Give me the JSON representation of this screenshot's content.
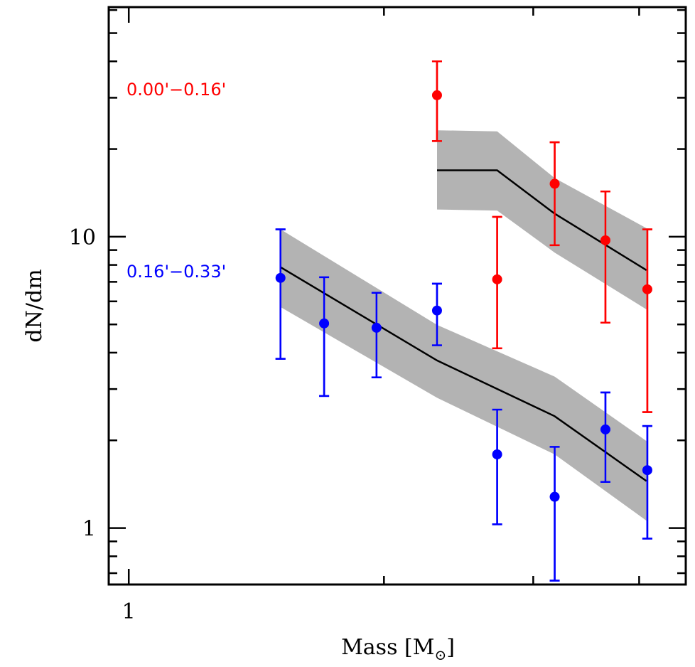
{
  "chart_data": {
    "type": "scatter",
    "title": "",
    "xlabel": "Mass [M",
    "xlabel_subscript": "⊙",
    "xlabel_close": "]",
    "ylabel": "dN/dm",
    "xscale": "log",
    "yscale": "log",
    "xlim": [
      0.947,
      4.54
    ],
    "ylim": [
      0.64,
      61.4
    ],
    "x_tick_labels": [
      {
        "value": 1,
        "label": "1"
      }
    ],
    "x_major_ticks": [
      1
    ],
    "x_minor_ticks": [
      2,
      3,
      4
    ],
    "y_tick_labels": [
      {
        "value": 1,
        "label": "1"
      },
      {
        "value": 10,
        "label": "10"
      }
    ],
    "y_major_ticks": [
      1,
      10
    ],
    "y_minor_ticks": [
      0.7,
      0.8,
      0.9,
      2,
      3,
      4,
      5,
      6,
      7,
      8,
      9,
      20,
      30,
      40,
      50,
      60
    ],
    "grid": false,
    "legend": "annotations, top-left",
    "series": [
      {
        "name": "0.00'−0.16'",
        "color": "#ff0000",
        "label_position": "top-left",
        "points": [
          {
            "x": 2.31,
            "y": 30.6,
            "ylo": 21.3,
            "yhi": 40.0
          },
          {
            "x": 2.72,
            "y": 7.14,
            "ylo": 4.14,
            "yhi": 11.7
          },
          {
            "x": 3.18,
            "y": 15.2,
            "ylo": 9.35,
            "yhi": 21.1
          },
          {
            "x": 3.65,
            "y": 9.72,
            "ylo": 5.07,
            "yhi": 14.3
          },
          {
            "x": 4.09,
            "y": 6.6,
            "ylo": 2.5,
            "yhi": 10.6
          }
        ],
        "model": {
          "line_color": "#000000",
          "band_color": "#b3b3b3",
          "x": [
            2.31,
            2.72,
            3.18,
            4.08
          ],
          "y": [
            16.9,
            16.9,
            12.0,
            7.68
          ],
          "band_low": [
            12.4,
            12.3,
            8.82,
            5.63
          ],
          "band_high": [
            23.2,
            23.0,
            15.9,
            10.7
          ]
        }
      },
      {
        "name": "0.16'−0.33'",
        "color": "#0000ff",
        "label_position": "middle-left",
        "points": [
          {
            "x": 1.51,
            "y": 7.22,
            "ylo": 3.81,
            "yhi": 10.6
          },
          {
            "x": 1.7,
            "y": 5.04,
            "ylo": 2.84,
            "yhi": 7.26
          },
          {
            "x": 1.96,
            "y": 4.87,
            "ylo": 3.29,
            "yhi": 6.42
          },
          {
            "x": 2.31,
            "y": 5.58,
            "ylo": 4.24,
            "yhi": 6.9
          },
          {
            "x": 2.72,
            "y": 1.79,
            "ylo": 1.03,
            "yhi": 2.55
          },
          {
            "x": 3.18,
            "y": 1.28,
            "ylo": 0.66,
            "yhi": 1.9
          },
          {
            "x": 3.65,
            "y": 2.18,
            "ylo": 1.44,
            "yhi": 2.92
          },
          {
            "x": 4.09,
            "y": 1.58,
            "ylo": 0.92,
            "yhi": 2.24
          }
        ],
        "model": {
          "line_color": "#000000",
          "band_color": "#b3b3b3",
          "x": [
            1.51,
            2.31,
            3.18,
            4.08
          ],
          "y": [
            7.86,
            3.76,
            2.42,
            1.45
          ],
          "band_low": [
            5.74,
            2.8,
            1.79,
            1.06
          ],
          "band_high": [
            10.6,
            4.98,
            3.31,
            1.99
          ]
        }
      }
    ]
  }
}
